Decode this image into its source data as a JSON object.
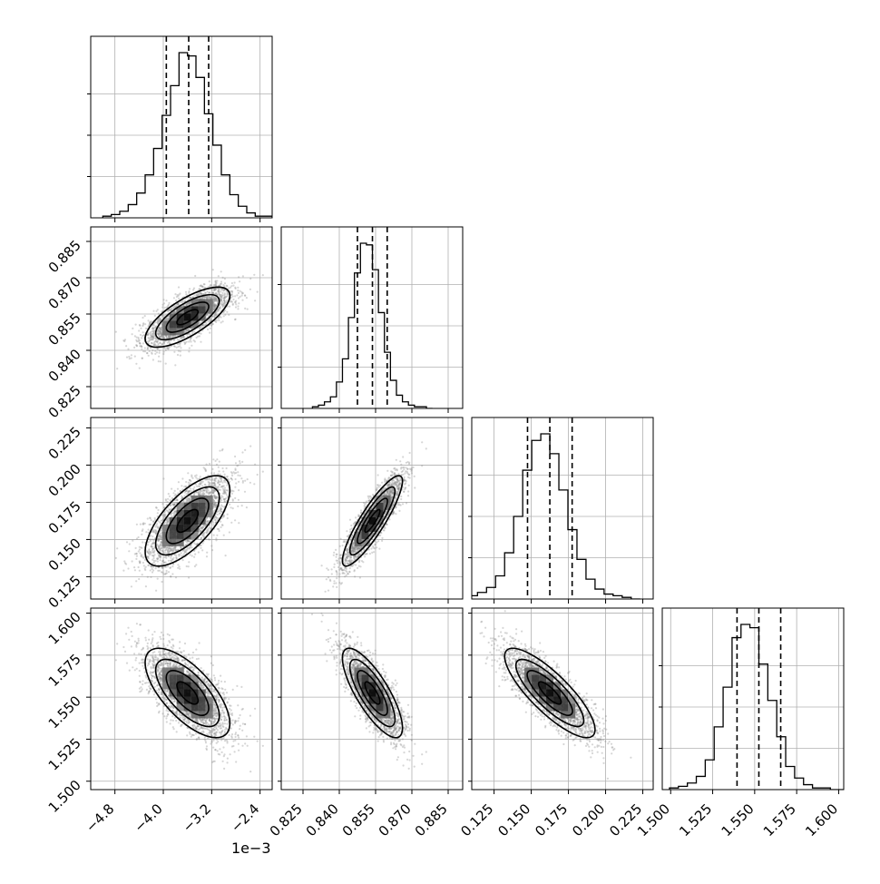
{
  "figure": {
    "offset_label": "1e−3",
    "params": [
      {
        "ticks": [
          "−4.8",
          "−4.0",
          "−3.2",
          "−2.4"
        ]
      },
      {
        "ticks": [
          "0.825",
          "0.840",
          "0.855",
          "0.870",
          "0.885"
        ]
      },
      {
        "ticks": [
          "0.125",
          "0.150",
          "0.175",
          "0.200",
          "0.225"
        ]
      },
      {
        "ticks": [
          "1.500",
          "1.525",
          "1.550",
          "1.575",
          "1.600"
        ]
      }
    ]
  },
  "chart_data": {
    "type": "corner",
    "grid": true,
    "axis_offset": "1e-3",
    "params": [
      {
        "range": [
          -0.0052,
          -0.0022
        ],
        "tick_values": [
          -0.0048,
          -0.004,
          -0.0032,
          -0.0024
        ],
        "quantiles": [
          -0.00395,
          -0.00358,
          -0.00325
        ],
        "mean": -0.0036,
        "sd": 0.00035
      },
      {
        "range": [
          0.816,
          0.891
        ],
        "tick_values": [
          0.825,
          0.84,
          0.855,
          0.87,
          0.885
        ],
        "quantiles": [
          0.8475,
          0.8537,
          0.8598
        ],
        "mean": 0.8537,
        "sd": 0.0062
      },
      {
        "range": [
          0.11,
          0.232
        ],
        "tick_values": [
          0.125,
          0.15,
          0.175,
          0.2,
          0.225
        ],
        "quantiles": [
          0.1475,
          0.1625,
          0.1775
        ],
        "mean": 0.1625,
        "sd": 0.0152
      },
      {
        "range": [
          1.495,
          1.603
        ],
        "tick_values": [
          1.5,
          1.525,
          1.55,
          1.575,
          1.6
        ],
        "quantiles": [
          1.5395,
          1.5525,
          1.5655
        ],
        "mean": 1.5525,
        "sd": 0.0133
      }
    ],
    "correlations": {
      "1-0": 0.72,
      "2-0": 0.68,
      "2-1": 0.88,
      "3-0": -0.68,
      "3-1": -0.78,
      "3-2": -0.82
    },
    "histograms": [
      [
        1,
        2,
        4,
        8,
        15,
        26,
        42,
        62,
        80,
        100,
        98,
        85,
        63,
        44,
        26,
        14,
        7,
        3,
        1,
        1
      ],
      [
        1,
        2,
        4,
        7,
        16,
        30,
        55,
        82,
        100,
        99,
        84,
        58,
        34,
        17,
        8,
        4,
        2,
        1,
        1,
        0
      ],
      [
        1,
        2,
        4,
        7,
        14,
        28,
        50,
        78,
        96,
        100,
        88,
        66,
        42,
        24,
        12,
        6,
        3,
        2,
        1,
        0
      ],
      [
        1,
        2,
        4,
        8,
        18,
        38,
        62,
        92,
        100,
        98,
        76,
        54,
        32,
        14,
        7,
        3,
        1,
        1,
        0,
        0
      ]
    ]
  }
}
